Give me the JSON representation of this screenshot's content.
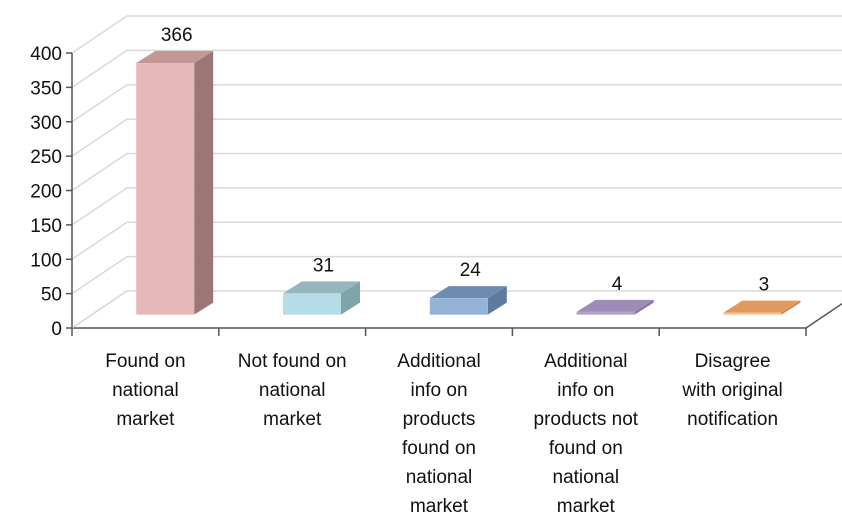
{
  "chart_data": {
    "type": "bar",
    "categories": [
      [
        "Found on",
        "national",
        "market"
      ],
      [
        "Not found on",
        "national",
        "market"
      ],
      [
        "Additional",
        "info on",
        "products",
        "found on",
        "national",
        "market"
      ],
      [
        "Additional",
        "info on",
        "products not",
        "found on",
        "national",
        "market"
      ],
      [
        "Disagree",
        "with original",
        "notification"
      ]
    ],
    "values": [
      366,
      31,
      24,
      4,
      3
    ],
    "data_labels": [
      "366",
      "31",
      "24",
      "4",
      "3"
    ],
    "yticks": [
      "0",
      "50",
      "100",
      "150",
      "200",
      "250",
      "300",
      "350",
      "400"
    ],
    "ylim": [
      0,
      400
    ],
    "grid": true,
    "title": "",
    "xlabel": "",
    "ylabel": "",
    "colors": [
      {
        "front": "#e6b9b8",
        "side": "#9c7675",
        "top": "#c49796"
      },
      {
        "front": "#b7dee8",
        "side": "#7fa4aa",
        "top": "#94b6bc"
      },
      {
        "front": "#95b3d7",
        "side": "#5e7a9c",
        "top": "#6f8cb0"
      },
      {
        "front": "#b3a2c7",
        "side": "#8574a0",
        "top": "#9c8cb6"
      },
      {
        "front": "#fac090",
        "side": "#c4854f",
        "top": "#e09a60"
      }
    ],
    "colors_meta": {
      "gridline": "#d9d9d9",
      "axis": "#555555"
    }
  }
}
